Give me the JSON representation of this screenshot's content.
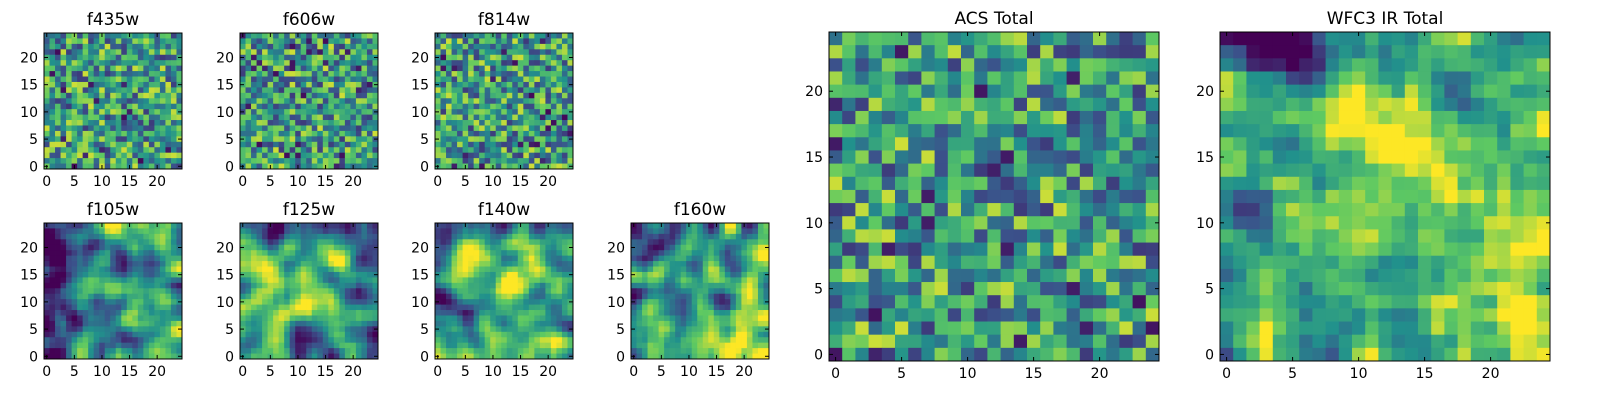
{
  "chart_data": [
    {
      "type": "heatmap",
      "title": "f435w",
      "xticks": [
        "0",
        "5",
        "10",
        "15",
        "20"
      ],
      "yticks": [
        "0",
        "5",
        "10",
        "15",
        "20"
      ],
      "grid_size": 25,
      "cell_tone": "mostly uniform green-yellow noise, scattered purple pixels"
    },
    {
      "type": "heatmap",
      "title": "f606w",
      "xticks": [
        "0",
        "5",
        "10",
        "15",
        "20"
      ],
      "yticks": [
        "0",
        "5",
        "10",
        "15",
        "20"
      ],
      "grid_size": 25,
      "cell_tone": "mostly uniform green-yellow noise, scattered purple pixels"
    },
    {
      "type": "heatmap",
      "title": "f814w",
      "xticks": [
        "0",
        "5",
        "10",
        "15",
        "20"
      ],
      "yticks": [
        "0",
        "5",
        "10",
        "15",
        "20"
      ],
      "grid_size": 25,
      "cell_tone": "mostly uniform green-yellow noise, scattered purple pixels"
    },
    {
      "type": "heatmap",
      "title": "f105w",
      "xticks": [
        "0",
        "5",
        "10",
        "15",
        "20"
      ],
      "yticks": [
        "0",
        "5",
        "10",
        "15",
        "20"
      ],
      "grid_size": 25,
      "cell_tone": "smooth blobs: dark blue at left, yellow near center"
    },
    {
      "type": "heatmap",
      "title": "f125w",
      "xticks": [
        "0",
        "5",
        "10",
        "15",
        "20"
      ],
      "yticks": [
        "0",
        "5",
        "10",
        "15",
        "20"
      ],
      "grid_size": 25,
      "cell_tone": "smooth blobs: dark at top-left, yellow center"
    },
    {
      "type": "heatmap",
      "title": "f140w",
      "xticks": [
        "0",
        "5",
        "10",
        "15",
        "20"
      ],
      "yticks": [
        "0",
        "5",
        "10",
        "15",
        "20"
      ],
      "grid_size": 25,
      "cell_tone": "smooth blobs with yellow clusters"
    },
    {
      "type": "heatmap",
      "title": "f160w",
      "xticks": [
        "0",
        "5",
        "10",
        "15",
        "20"
      ],
      "yticks": [
        "0",
        "5",
        "10",
        "15",
        "20"
      ],
      "grid_size": 25,
      "cell_tone": "smooth, yellow lower-right"
    },
    {
      "type": "heatmap",
      "title": "ACS Total",
      "xticks": [
        "0",
        "5",
        "10",
        "15",
        "20"
      ],
      "yticks": [
        "0",
        "5",
        "10",
        "15",
        "20"
      ],
      "grid_size": 25,
      "cell_tone": "green-yellow noise with a few dark pixels"
    },
    {
      "type": "heatmap",
      "title": "WFC3 IR Total",
      "xticks": [
        "0",
        "5",
        "10",
        "15",
        "20"
      ],
      "yticks": [
        "0",
        "5",
        "10",
        "15",
        "20"
      ],
      "grid_size": 25,
      "cell_tone": "dark purple top-left, yellow center and lower-right"
    }
  ],
  "colormap": {
    "name": "viridis",
    "stops": [
      "#440154",
      "#3b528b",
      "#21918c",
      "#5ec962",
      "#fde725"
    ]
  }
}
